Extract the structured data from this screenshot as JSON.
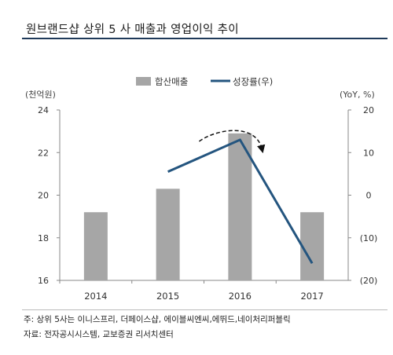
{
  "title": "원브랜드샵 상위 5 사 매출과 영업이익 추이",
  "notes": {
    "note": "주: 상위 5사는 이니스프리, 더페이스샵, 에이블씨엔씨,에뛰드,네이처리퍼블릭",
    "source": "자료: 전자공시시스템, 교보증권 리서치센터"
  },
  "chart_data": {
    "type": "bar",
    "categories": [
      "2014",
      "2015",
      "2016",
      "2017"
    ],
    "series": [
      {
        "name": "합산매출",
        "type": "bar",
        "axis": "left",
        "color": "#a6a6a6",
        "values": [
          19.2,
          20.3,
          22.9,
          19.2
        ]
      },
      {
        "name": "성장률(우)",
        "type": "line",
        "axis": "right",
        "color": "#24557f",
        "values": [
          null,
          5.5,
          13.0,
          -16.0
        ]
      }
    ],
    "left_axis": {
      "unit": "(천억원)",
      "ylim": [
        16,
        24
      ],
      "ticks": [
        "16",
        "18",
        "20",
        "22",
        "24"
      ]
    },
    "right_axis": {
      "unit": "(YoY, %)",
      "ylim": [
        -20,
        20
      ],
      "ticks": [
        "(20)",
        "(10)",
        "0",
        "10",
        "20"
      ]
    },
    "legend_position": "top-center",
    "annotation": "dashed-curved-arrow-at-2016-peak"
  }
}
